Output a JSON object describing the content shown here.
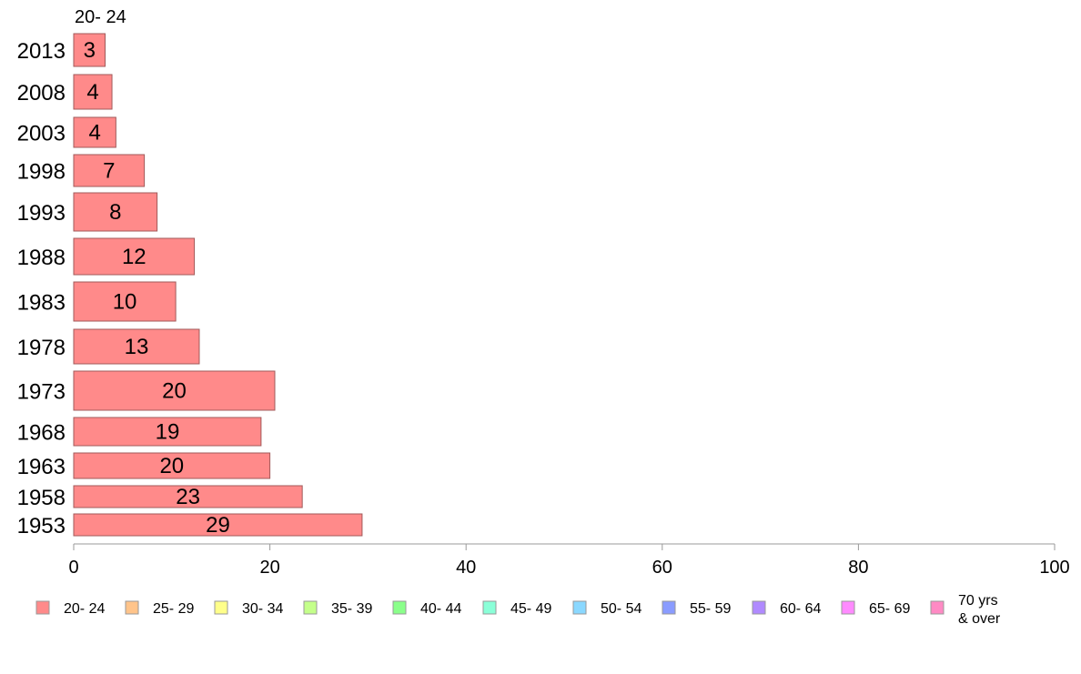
{
  "chart_data": {
    "type": "bar",
    "orientation": "horizontal",
    "series_header": "20- 24",
    "categories": [
      "2013",
      "2008",
      "2003",
      "1998",
      "1993",
      "1988",
      "1983",
      "1978",
      "1973",
      "1968",
      "1963",
      "1958",
      "1953"
    ],
    "series": [
      {
        "name": "20- 24",
        "color": "#ff8a8a",
        "values": [
          3,
          4,
          4,
          7,
          8,
          12,
          10,
          13,
          20,
          19,
          20,
          23,
          29
        ],
        "display_values": [
          3.2,
          3.9,
          4.3,
          7.2,
          8.5,
          12.3,
          10.4,
          12.8,
          20.5,
          19.1,
          20.0,
          23.3,
          29.4
        ]
      }
    ],
    "xlim": [
      0,
      100
    ],
    "xticks": [
      "0",
      "20",
      "40",
      "60",
      "80",
      "100"
    ],
    "grid": false,
    "legend_position": "bottom",
    "legend": [
      {
        "label": "20- 24",
        "color": "#ff8a8a"
      },
      {
        "label": "25- 29",
        "color": "#ffc48a"
      },
      {
        "label": "30- 34",
        "color": "#ffff8a"
      },
      {
        "label": "35- 39",
        "color": "#c4ff8a"
      },
      {
        "label": "40- 44",
        "color": "#8aff8a"
      },
      {
        "label": "45- 49",
        "color": "#8affd8"
      },
      {
        "label": "50- 54",
        "color": "#8ad8ff"
      },
      {
        "label": "55- 59",
        "color": "#8a9cff"
      },
      {
        "label": "60- 64",
        "color": "#b08aff"
      },
      {
        "label": "65- 69",
        "color": "#ff8aff"
      },
      {
        "label": "70 yrs\n& over",
        "color": "#ff8ac4"
      }
    ]
  }
}
